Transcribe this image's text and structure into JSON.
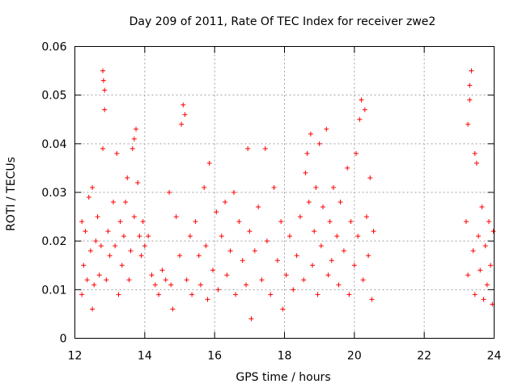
{
  "chart_data": {
    "type": "scatter",
    "title": "Day 209 of 2011, Rate Of TEC Index for receiver zwe2",
    "xlabel": "GPS time / hours",
    "ylabel": "ROTI / TECUs",
    "xlim": [
      12,
      24
    ],
    "ylim": [
      0,
      0.06
    ],
    "xticks": [
      12,
      14,
      16,
      18,
      20,
      22,
      24
    ],
    "xtick_labels": [
      "12",
      "14",
      "16",
      "18",
      "20",
      "22",
      "24"
    ],
    "yticks": [
      0,
      0.01,
      0.02,
      0.03,
      0.04,
      0.05,
      0.06
    ],
    "ytick_labels": [
      "0",
      "0.01",
      "0.02",
      "0.03",
      "0.04",
      "0.05",
      "0.06"
    ],
    "grid": true,
    "marker": "+",
    "colors": {
      "points": "#ff0000",
      "grid": "#a0a0a0",
      "axes": "#000000"
    },
    "series": [
      {
        "points": [
          [
            12.2,
            0.024
          ],
          [
            12.2,
            0.009
          ],
          [
            12.25,
            0.015
          ],
          [
            12.3,
            0.022
          ],
          [
            12.35,
            0.012
          ],
          [
            12.4,
            0.029
          ],
          [
            12.45,
            0.018
          ],
          [
            12.5,
            0.031
          ],
          [
            12.5,
            0.006
          ],
          [
            12.55,
            0.011
          ],
          [
            12.6,
            0.02
          ],
          [
            12.65,
            0.025
          ],
          [
            12.7,
            0.013
          ],
          [
            12.75,
            0.019
          ],
          [
            12.8,
            0.055
          ],
          [
            12.82,
            0.053
          ],
          [
            12.85,
            0.051
          ],
          [
            12.85,
            0.047
          ],
          [
            12.8,
            0.039
          ],
          [
            12.9,
            0.012
          ],
          [
            12.95,
            0.022
          ],
          [
            13.0,
            0.017
          ],
          [
            13.1,
            0.028
          ],
          [
            13.15,
            0.019
          ],
          [
            13.2,
            0.038
          ],
          [
            13.25,
            0.009
          ],
          [
            13.3,
            0.024
          ],
          [
            13.35,
            0.015
          ],
          [
            13.4,
            0.021
          ],
          [
            13.45,
            0.028
          ],
          [
            13.5,
            0.033
          ],
          [
            13.55,
            0.012
          ],
          [
            13.6,
            0.018
          ],
          [
            13.65,
            0.039
          ],
          [
            13.7,
            0.041
          ],
          [
            13.75,
            0.043
          ],
          [
            13.7,
            0.025
          ],
          [
            13.8,
            0.032
          ],
          [
            13.85,
            0.021
          ],
          [
            13.9,
            0.017
          ],
          [
            13.95,
            0.024
          ],
          [
            14.0,
            0.019
          ],
          [
            14.1,
            0.021
          ],
          [
            14.2,
            0.013
          ],
          [
            14.3,
            0.011
          ],
          [
            14.4,
            0.009
          ],
          [
            14.5,
            0.014
          ],
          [
            14.6,
            0.012
          ],
          [
            14.7,
            0.03
          ],
          [
            14.75,
            0.011
          ],
          [
            14.8,
            0.006
          ],
          [
            14.9,
            0.025
          ],
          [
            15.0,
            0.017
          ],
          [
            15.05,
            0.044
          ],
          [
            15.1,
            0.048
          ],
          [
            15.15,
            0.046
          ],
          [
            15.2,
            0.012
          ],
          [
            15.3,
            0.021
          ],
          [
            15.35,
            0.009
          ],
          [
            15.45,
            0.024
          ],
          [
            15.55,
            0.017
          ],
          [
            15.6,
            0.011
          ],
          [
            15.7,
            0.031
          ],
          [
            15.75,
            0.019
          ],
          [
            15.8,
            0.008
          ],
          [
            15.85,
            0.036
          ],
          [
            15.95,
            0.014
          ],
          [
            16.05,
            0.026
          ],
          [
            16.1,
            0.01
          ],
          [
            16.2,
            0.021
          ],
          [
            16.3,
            0.028
          ],
          [
            16.35,
            0.013
          ],
          [
            16.45,
            0.018
          ],
          [
            16.55,
            0.03
          ],
          [
            16.6,
            0.009
          ],
          [
            16.7,
            0.024
          ],
          [
            16.8,
            0.016
          ],
          [
            16.9,
            0.011
          ],
          [
            16.95,
            0.039
          ],
          [
            17.0,
            0.022
          ],
          [
            17.05,
            0.004
          ],
          [
            17.15,
            0.018
          ],
          [
            17.25,
            0.027
          ],
          [
            17.35,
            0.012
          ],
          [
            17.45,
            0.039
          ],
          [
            17.5,
            0.02
          ],
          [
            17.6,
            0.009
          ],
          [
            17.7,
            0.031
          ],
          [
            17.8,
            0.016
          ],
          [
            17.9,
            0.024
          ],
          [
            17.95,
            0.006
          ],
          [
            18.05,
            0.013
          ],
          [
            18.15,
            0.021
          ],
          [
            18.25,
            0.01
          ],
          [
            18.35,
            0.017
          ],
          [
            18.45,
            0.025
          ],
          [
            18.55,
            0.012
          ],
          [
            18.6,
            0.034
          ],
          [
            18.65,
            0.038
          ],
          [
            18.7,
            0.028
          ],
          [
            18.75,
            0.042
          ],
          [
            18.8,
            0.015
          ],
          [
            18.85,
            0.022
          ],
          [
            18.9,
            0.031
          ],
          [
            18.95,
            0.009
          ],
          [
            19.0,
            0.04
          ],
          [
            19.05,
            0.019
          ],
          [
            19.1,
            0.027
          ],
          [
            19.2,
            0.043
          ],
          [
            19.25,
            0.013
          ],
          [
            19.3,
            0.024
          ],
          [
            19.35,
            0.016
          ],
          [
            19.4,
            0.031
          ],
          [
            19.5,
            0.021
          ],
          [
            19.55,
            0.011
          ],
          [
            19.6,
            0.028
          ],
          [
            19.7,
            0.018
          ],
          [
            19.8,
            0.035
          ],
          [
            19.85,
            0.009
          ],
          [
            19.9,
            0.024
          ],
          [
            20.0,
            0.015
          ],
          [
            20.05,
            0.038
          ],
          [
            20.1,
            0.021
          ],
          [
            20.15,
            0.045
          ],
          [
            20.2,
            0.049
          ],
          [
            20.25,
            0.012
          ],
          [
            20.3,
            0.047
          ],
          [
            20.35,
            0.025
          ],
          [
            20.4,
            0.017
          ],
          [
            20.45,
            0.033
          ],
          [
            20.5,
            0.008
          ],
          [
            20.55,
            0.022
          ],
          [
            23.2,
            0.024
          ],
          [
            23.25,
            0.044
          ],
          [
            23.3,
            0.052
          ],
          [
            23.3,
            0.049
          ],
          [
            23.35,
            0.055
          ],
          [
            23.25,
            0.013
          ],
          [
            23.4,
            0.018
          ],
          [
            23.45,
            0.038
          ],
          [
            23.5,
            0.036
          ],
          [
            23.45,
            0.009
          ],
          [
            23.55,
            0.021
          ],
          [
            23.6,
            0.014
          ],
          [
            23.65,
            0.027
          ],
          [
            23.7,
            0.008
          ],
          [
            23.75,
            0.019
          ],
          [
            23.8,
            0.011
          ],
          [
            23.85,
            0.024
          ],
          [
            23.9,
            0.015
          ],
          [
            23.95,
            0.007
          ],
          [
            23.98,
            0.022
          ]
        ]
      }
    ]
  }
}
